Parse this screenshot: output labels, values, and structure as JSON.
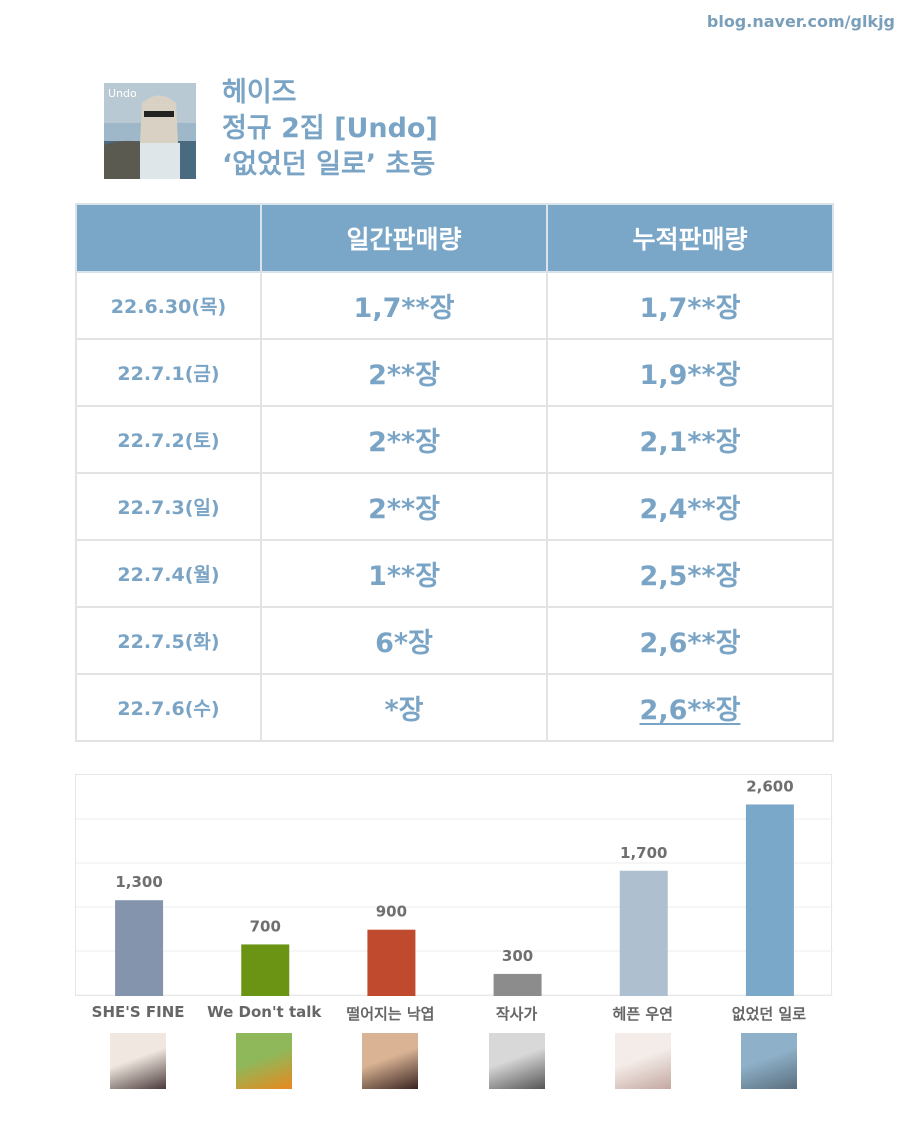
{
  "blog_url": "blog.naver.com/glkjg",
  "album": {
    "art_text": "Undo",
    "title_lines": [
      "헤이즈",
      "정규 2집 [Undo]",
      "‘없었던 일로’ 초동"
    ]
  },
  "table": {
    "headers": [
      "",
      "일간판매량",
      "누적판매량"
    ],
    "rows": [
      {
        "date": "22.6.30(목)",
        "daily": "1,7**장",
        "cumulative": "1,7**장"
      },
      {
        "date": "22.7.1(금)",
        "daily": "2**장",
        "cumulative": "1,9**장"
      },
      {
        "date": "22.7.2(토)",
        "daily": "2**장",
        "cumulative": "2,1**장"
      },
      {
        "date": "22.7.3(일)",
        "daily": "2**장",
        "cumulative": "2,4**장"
      },
      {
        "date": "22.7.4(월)",
        "daily": "1**장",
        "cumulative": "2,5**장"
      },
      {
        "date": "22.7.5(화)",
        "daily": "6*장",
        "cumulative": "2,6**장"
      },
      {
        "date": "22.7.6(수)",
        "daily": "*장",
        "cumulative": "2,6**장"
      }
    ]
  },
  "chart_data": {
    "type": "bar",
    "categories": [
      "SHE'S FINE",
      "We Don't talk",
      "떨어지는 낙엽",
      "작사가",
      "헤픈 우연",
      "없었던 일로"
    ],
    "values": [
      1300,
      700,
      900,
      300,
      1700,
      2600
    ],
    "value_labels": [
      "1,300",
      "700",
      "900",
      "300",
      "1,700",
      "2,600"
    ],
    "colors": [
      "#8494ad",
      "#6b9414",
      "#bf4a2d",
      "#8c8c8c",
      "#aebfd0",
      "#7aa8c9"
    ],
    "thumb_colors": [
      [
        "#f0e8e0",
        "#4a3a3a"
      ],
      [
        "#8fb85a",
        "#e8891f"
      ],
      [
        "#d9b394",
        "#3a2420"
      ],
      [
        "#d8d8d8",
        "#555555"
      ],
      [
        "#f4ece8",
        "#c4a8a0"
      ],
      [
        "#8eb0c8",
        "#5a6e7e"
      ]
    ],
    "ylim": [
      0,
      3000
    ],
    "grid": true,
    "title": "",
    "xlabel": "",
    "ylabel": ""
  }
}
